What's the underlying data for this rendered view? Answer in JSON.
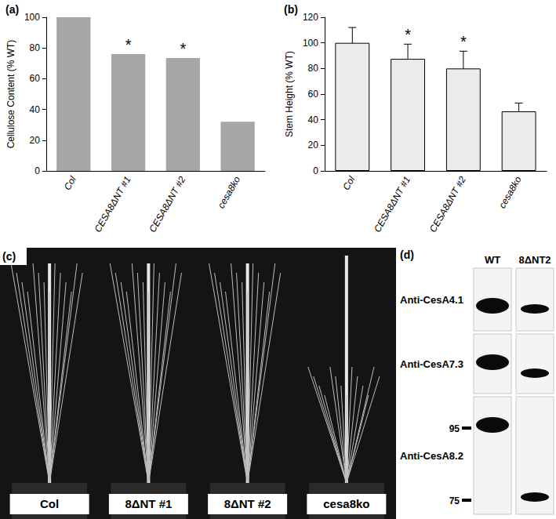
{
  "chart_data": [
    {
      "type": "bar",
      "title": "(a)",
      "y_label": "Cellulose Content (% WT)",
      "categories": [
        "Col",
        "CESA8ΔNT #1",
        "CESA8ΔNT #2",
        "cesa8ko"
      ],
      "values": [
        100,
        76,
        73.5,
        32
      ],
      "significance": [
        null,
        "*",
        "*",
        null
      ],
      "color": "#a6a6a6",
      "ylim": [
        0,
        100
      ],
      "yticks": [
        0,
        20,
        40,
        60,
        80,
        100
      ],
      "grid": false
    },
    {
      "type": "bar",
      "title": "(b)",
      "y_label": "Stem Height (% WT)",
      "categories": [
        "Col",
        "CESA8ΔNT #1",
        "CESA8ΔNT #2",
        "cesa8ko"
      ],
      "values": [
        100,
        87.5,
        80,
        46.5
      ],
      "errors": [
        12,
        11.5,
        13.5,
        6.5
      ],
      "significance": [
        null,
        "*",
        "*",
        null
      ],
      "color": "#ececec",
      "ylim": [
        0,
        120
      ],
      "yticks": [
        0,
        20,
        40,
        60,
        80,
        100,
        120
      ],
      "grid": false
    }
  ],
  "photo": {
    "label": "(c)",
    "plants": [
      "Col",
      "8ΔNT #1",
      "8ΔNT #2",
      "cesa8ko"
    ]
  },
  "blot": {
    "label": "(d)",
    "lanes": [
      "WT",
      "8ΔNT2"
    ],
    "antibodies": [
      "Anti-CesA4.1",
      "Anti-CesA7.3",
      "Anti-CesA8.2"
    ],
    "markers": [
      95,
      75
    ]
  }
}
